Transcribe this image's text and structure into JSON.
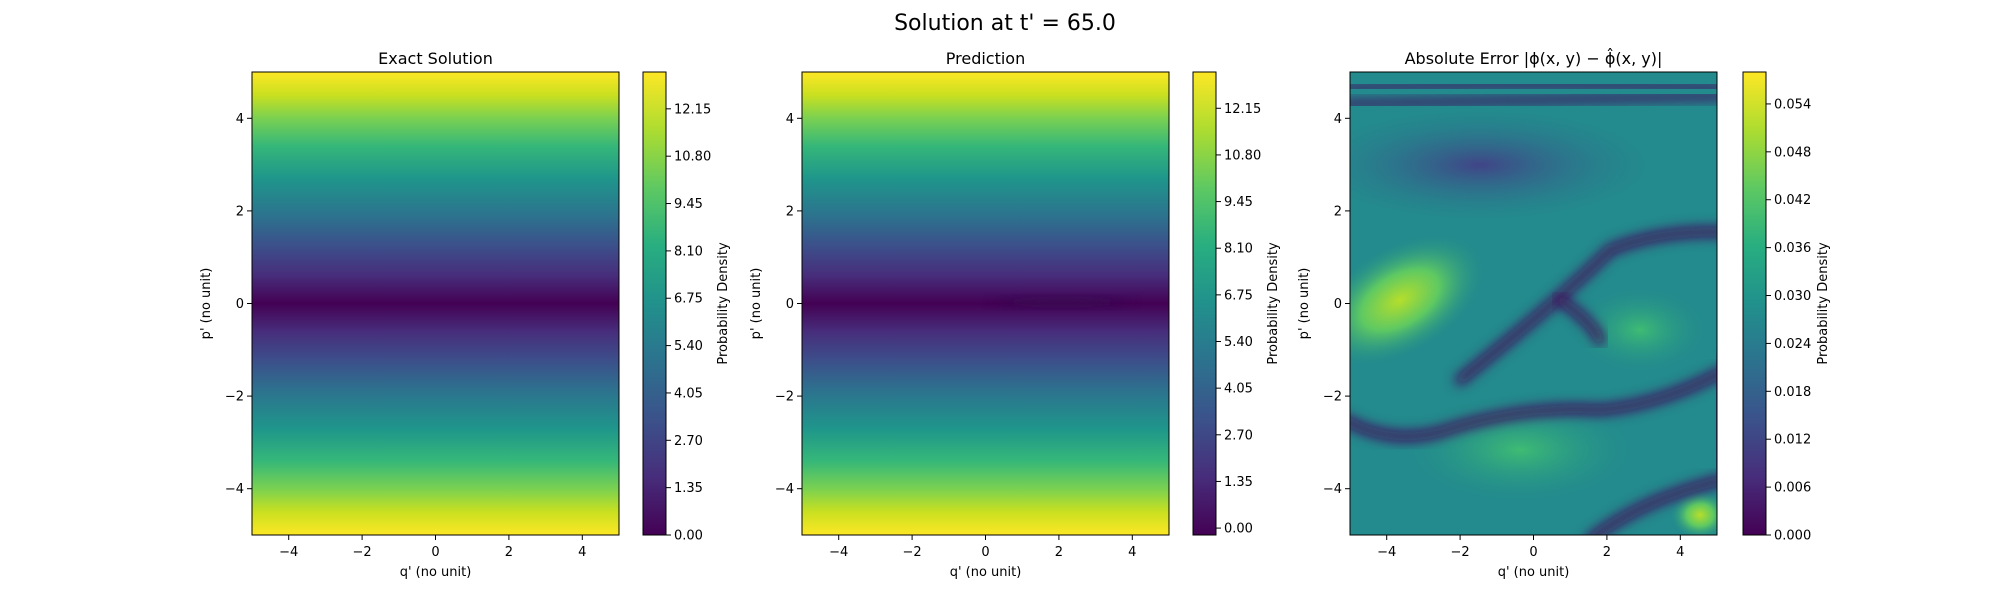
{
  "figure": {
    "suptitle": "Solution at t' = 65.0"
  },
  "chart_data": [
    {
      "type": "heatmap",
      "title": "Exact Solution",
      "xlabel": "q' (no unit)",
      "ylabel": "p' (no unit)",
      "xlim": [
        -5,
        5
      ],
      "ylim": [
        -5,
        5
      ],
      "xticks": [
        -4,
        -2,
        0,
        2,
        4
      ],
      "yticks": [
        -4,
        -2,
        0,
        2,
        4
      ],
      "xtick_labels": [
        "−4",
        "−2",
        "0",
        "2",
        "4"
      ],
      "ytick_labels": [
        "−4",
        "−2",
        "0",
        "2",
        "4"
      ],
      "colormap": "viridis",
      "colorbar": {
        "label": "Probability Density",
        "range": [
          0,
          13.2
        ],
        "ticks": [
          0,
          1.35,
          2.7,
          4.05,
          5.4,
          6.75,
          8.1,
          9.45,
          10.8,
          12.15
        ],
        "tick_labels": [
          "0.00",
          "1.35",
          "2.70",
          "4.05",
          "5.40",
          "6.75",
          "8.10",
          "9.45",
          "10.80",
          "12.15"
        ]
      },
      "description_values": {
        "field": "0.5*p^2 (approx.)"
      }
    },
    {
      "type": "heatmap",
      "title": "Prediction",
      "xlabel": "q' (no unit)",
      "ylabel": "p' (no unit)",
      "xlim": [
        -5,
        5
      ],
      "ylim": [
        -5,
        5
      ],
      "xticks": [
        -4,
        -2,
        0,
        2,
        4
      ],
      "yticks": [
        -4,
        -2,
        0,
        2,
        4
      ],
      "xtick_labels": [
        "−4",
        "−2",
        "0",
        "2",
        "4"
      ],
      "ytick_labels": [
        "−4",
        "−2",
        "0",
        "2",
        "4"
      ],
      "colormap": "viridis",
      "colorbar": {
        "label": "Probability Density",
        "range": [
          -0.2,
          13.2
        ],
        "ticks": [
          0,
          1.35,
          2.7,
          4.05,
          5.4,
          6.75,
          8.1,
          9.45,
          10.8,
          12.15
        ],
        "tick_labels": [
          "0.00",
          "1.35",
          "2.70",
          "4.05",
          "5.40",
          "6.75",
          "8.10",
          "9.45",
          "10.80",
          "12.15"
        ]
      }
    },
    {
      "type": "heatmap",
      "title": "Absolute Error |ϕ(x, y) − ϕ̂(x, y)|",
      "xlabel": "q' (no unit)",
      "ylabel": "p' (no unit)",
      "xlim": [
        -5,
        5
      ],
      "ylim": [
        -5,
        5
      ],
      "xticks": [
        -4,
        -2,
        0,
        2,
        4
      ],
      "yticks": [
        -4,
        -2,
        0,
        2,
        4
      ],
      "xtick_labels": [
        "−4",
        "−2",
        "0",
        "2",
        "4"
      ],
      "ytick_labels": [
        "−4",
        "−2",
        "0",
        "2",
        "4"
      ],
      "colormap": "viridis",
      "colorbar": {
        "label": "Probability Density",
        "range": [
          0,
          0.058
        ],
        "ticks": [
          0,
          0.006,
          0.012,
          0.018,
          0.024,
          0.03,
          0.036,
          0.042,
          0.048,
          0.054
        ],
        "tick_labels": [
          "0.000",
          "0.006",
          "0.012",
          "0.018",
          "0.024",
          "0.030",
          "0.036",
          "0.042",
          "0.048",
          "0.054"
        ]
      }
    }
  ]
}
